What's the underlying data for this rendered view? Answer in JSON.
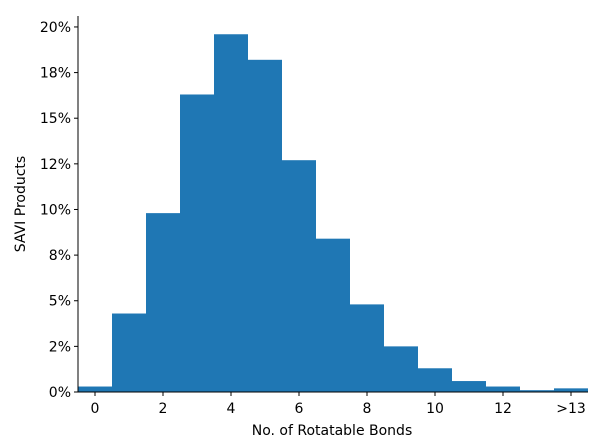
{
  "chart_data": {
    "type": "bar",
    "xlabel": "No. of Rotatable Bonds",
    "ylabel": "SAVI Products",
    "categories": [
      "0",
      "1",
      "2",
      "3",
      "4",
      "5",
      "6",
      "7",
      "8",
      "9",
      "10",
      "11",
      "12",
      "13",
      ">13"
    ],
    "values": [
      0.3,
      4.3,
      9.8,
      16.3,
      19.6,
      18.2,
      12.7,
      8.4,
      4.8,
      2.5,
      1.3,
      0.6,
      0.3,
      0.1,
      0.2
    ],
    "x_ticks": [
      {
        "x": 0,
        "label": "0"
      },
      {
        "x": 2,
        "label": "2"
      },
      {
        "x": 4,
        "label": "4"
      },
      {
        "x": 6,
        "label": "6"
      },
      {
        "x": 8,
        "label": "8"
      },
      {
        "x": 10,
        "label": "10"
      },
      {
        "x": 12,
        "label": "12"
      },
      {
        "x": 14,
        "label": ">13"
      }
    ],
    "y_ticks": [
      {
        "v": 0,
        "label": "0%"
      },
      {
        "v": 2.5,
        "label": "2%"
      },
      {
        "v": 5,
        "label": "5%"
      },
      {
        "v": 7.5,
        "label": "8%"
      },
      {
        "v": 10,
        "label": "10%"
      },
      {
        "v": 12.5,
        "label": "12%"
      },
      {
        "v": 15,
        "label": "15%"
      },
      {
        "v": 17.5,
        "label": "18%"
      },
      {
        "v": 20,
        "label": "20%"
      }
    ],
    "xlim": [
      -0.5,
      14.5
    ],
    "ylim": [
      0,
      20.6
    ],
    "bar_color": "#1f77b4",
    "grid": false
  }
}
